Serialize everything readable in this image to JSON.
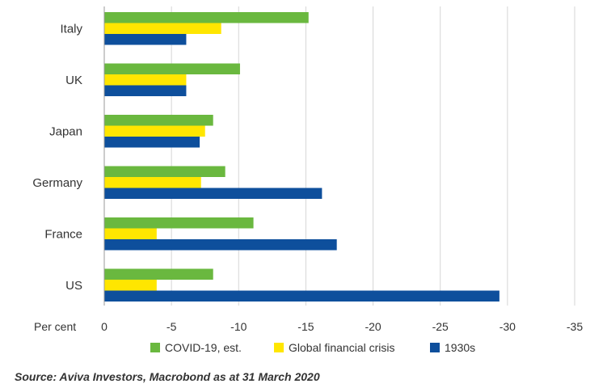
{
  "chart_data": {
    "type": "bar",
    "orientation": "horizontal",
    "categories": [
      "Italy",
      "UK",
      "Japan",
      "Germany",
      "France",
      "US"
    ],
    "series": [
      {
        "name": "COVID-19, est.",
        "color": "#6ab83f",
        "values": [
          -15.2,
          -10.1,
          -8.1,
          -9.0,
          -11.1,
          -8.1
        ]
      },
      {
        "name": "Global financial crisis",
        "color": "#ffe600",
        "values": [
          -8.7,
          -6.1,
          -7.5,
          -7.2,
          -3.9,
          -3.9
        ]
      },
      {
        "name": "1930s",
        "color": "#0e4f9c",
        "values": [
          -6.1,
          -6.1,
          -7.1,
          -16.2,
          -17.3,
          -29.4
        ]
      }
    ],
    "xlim": [
      0,
      -35
    ],
    "xticks": [
      "0",
      "-5",
      "-10",
      "-15",
      "-20",
      "-25",
      "-30",
      "-35"
    ],
    "xlabel": "Per cent",
    "grid": true,
    "legend_position": "bottom"
  },
  "source_text": "Source: Aviva Investors, Macrobond as at 31 March 2020"
}
